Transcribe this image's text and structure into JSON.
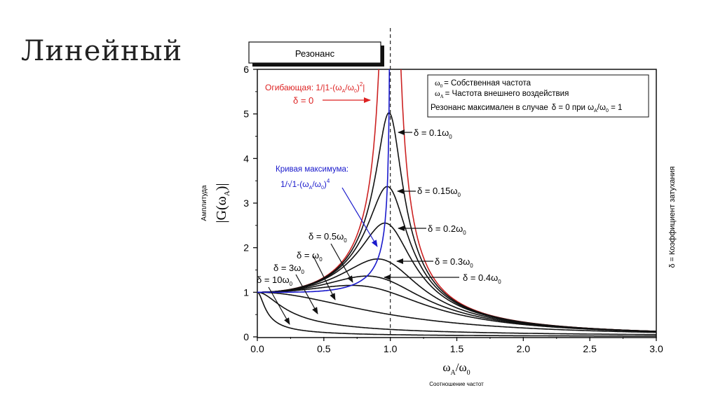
{
  "slide": {
    "title": "Линейный"
  },
  "chart_data": {
    "type": "line",
    "title": "Резонанс",
    "xlabel": {
      "main": "ω",
      "sub": "A",
      "slash": "/ω",
      "sub2": "0",
      "caption": "Соотношение частот"
    },
    "ylabel": {
      "caption": "Амплитуда",
      "main": "|G(ω",
      "sub": "A",
      "close": ")|"
    },
    "right_label": "δ = Коэффициент затухания",
    "xlim": [
      0,
      3
    ],
    "ylim": [
      0,
      6
    ],
    "x_ticks": [
      "0.0",
      "0.5",
      "1.0",
      "1.5",
      "2.0",
      "2.5",
      "3.0"
    ],
    "x_tick_values": [
      0,
      0.5,
      1,
      1.5,
      2,
      2.5,
      3
    ],
    "y_ticks": [
      "0",
      "1",
      "2",
      "3",
      "4",
      "5",
      "6"
    ],
    "y_tick_values": [
      0,
      1,
      2,
      3,
      4,
      5,
      6
    ],
    "reference_line_x": 1.0,
    "formula": "|G| = 1/sqrt((1-x^2)^2 + (2*d*x)^2), x = ωA/ω0, d = δ/ω0",
    "series": [
      {
        "name": "δ = 0 (envelope)",
        "damping": 0,
        "color": "#cc2222"
      },
      {
        "name": "δ = 0.1ω0",
        "damping": 0.1,
        "color": "#111111"
      },
      {
        "name": "δ = 0.15ω0",
        "damping": 0.15,
        "color": "#111111"
      },
      {
        "name": "δ = 0.2ω0",
        "damping": 0.2,
        "color": "#111111"
      },
      {
        "name": "δ = 0.3ω0",
        "damping": 0.3,
        "color": "#111111"
      },
      {
        "name": "δ = 0.4ω0",
        "damping": 0.4,
        "color": "#111111"
      },
      {
        "name": "δ = 0.5ω0",
        "damping": 0.5,
        "color": "#111111"
      },
      {
        "name": "δ = ω0",
        "damping": 1,
        "color": "#111111"
      },
      {
        "name": "δ = 3ω0",
        "damping": 3,
        "color": "#111111"
      },
      {
        "name": "δ = 10ω0",
        "damping": 10,
        "color": "#111111"
      },
      {
        "name": "Кривая максимума",
        "formula": "1/sqrt(1-x^4)",
        "color": "#1a1acc"
      }
    ],
    "legend": {
      "position": "top-right",
      "line1": {
        "sym": "ω",
        "sub": "0",
        "text": "= Собственная частота"
      },
      "line2": {
        "sym": "ω",
        "sub": "A",
        "text": "= Частота внешнего воздействия"
      },
      "line3": {
        "text": "Резонанс максимален в случае",
        "cond": "δ = 0 при ω",
        "sub": "A",
        "slash": "/ω",
        "sub2": "0",
        "end": " = 1"
      }
    },
    "annotations": {
      "envelope": {
        "text": "Огибающая: 1/|1-(ω",
        "sub": "A",
        "mid": "/ω",
        "sub2": "0",
        "close": ")",
        "sup": "2",
        "end": "|"
      },
      "d0": "δ = 0",
      "max_title": "Кривая максимума:",
      "max_formula": {
        "text": "1/√1-(ω",
        "sub": "A",
        "mid": "/ω",
        "sub2": "0",
        "close": ")",
        "sup": "4"
      },
      "labels": [
        {
          "text": "δ = 0.1ω",
          "sub": "0"
        },
        {
          "text": "δ = 0.15ω",
          "sub": "0"
        },
        {
          "text": "δ = 0.2ω",
          "sub": "0"
        },
        {
          "text": "δ = 0.3ω",
          "sub": "0"
        },
        {
          "text": "δ = 0.4ω",
          "sub": "0"
        },
        {
          "text": "δ = 0.5ω",
          "sub": "0"
        },
        {
          "text": "δ = ω",
          "sub": "0"
        },
        {
          "text": "δ = 3ω",
          "sub": "0"
        },
        {
          "text": "δ = 10ω",
          "sub": "0"
        }
      ]
    }
  }
}
